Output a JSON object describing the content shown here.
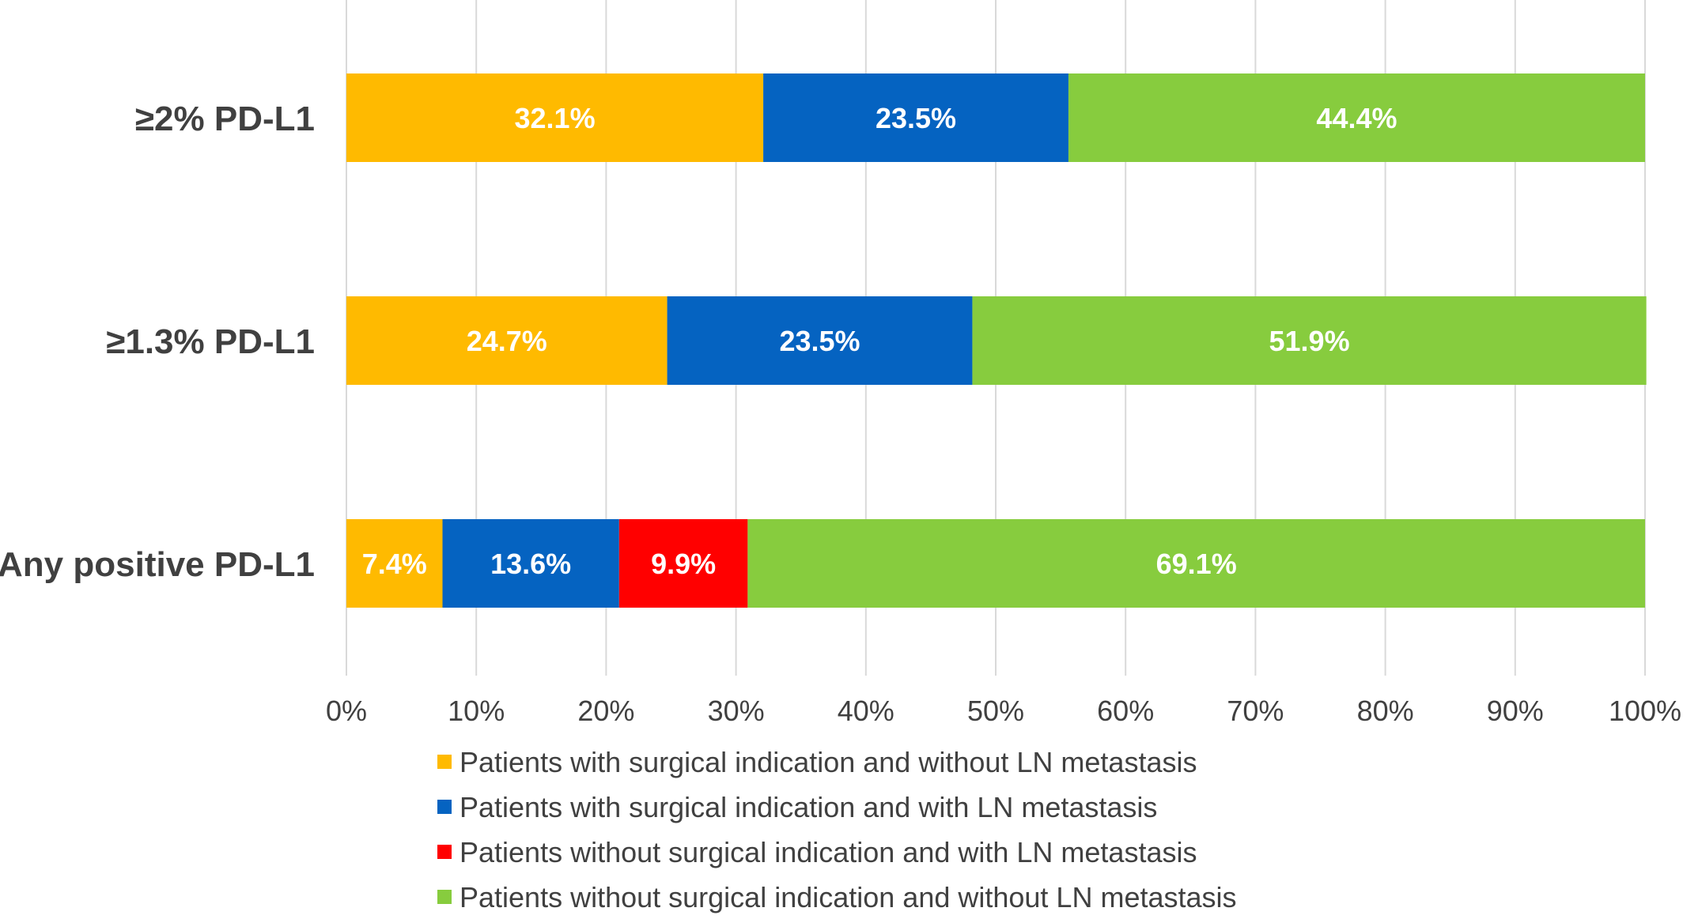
{
  "chart_data": {
    "type": "bar",
    "orientation": "horizontal",
    "stacked": true,
    "categories": [
      "≥2% PD-L1",
      "≥1.3% PD-L1",
      "Any positive PD-L1"
    ],
    "series": [
      {
        "name": "Patients with surgical indication and without LN metastasis",
        "color": "#FFBA00",
        "values": [
          32.1,
          24.7,
          7.4
        ],
        "labels": [
          "32.1%",
          "24.7%",
          "7.4%"
        ]
      },
      {
        "name": "Patients with surgical indication and with LN metastasis",
        "color": "#0563C1",
        "values": [
          23.5,
          23.5,
          13.6
        ],
        "labels": [
          "23.5%",
          "23.5%",
          "13.6%"
        ]
      },
      {
        "name": "Patients without surgical indication and with LN metastasis",
        "color": "#FF0000",
        "values": [
          0,
          0,
          9.9
        ],
        "labels": [
          "",
          "",
          "9.9%"
        ]
      },
      {
        "name": "Patients without surgical indication and without LN metastasis",
        "color": "#87CC3E",
        "values": [
          44.4,
          51.9,
          69.1
        ],
        "labels": [
          "44.4%",
          "51.9%",
          "69.1%"
        ]
      }
    ],
    "xlim": [
      0,
      100
    ],
    "xticks": [
      "0%",
      "10%",
      "20%",
      "30%",
      "40%",
      "50%",
      "60%",
      "70%",
      "80%",
      "90%",
      "100%"
    ],
    "grid": "vertical",
    "legend": "bottom",
    "title": "",
    "xlabel": "",
    "ylabel": ""
  }
}
